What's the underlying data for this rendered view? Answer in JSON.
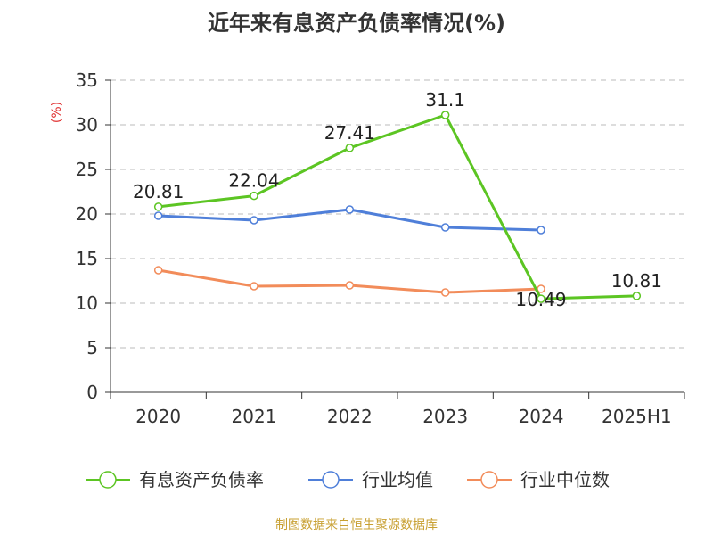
{
  "title": "近年来有息资产负债率情况(%)",
  "source_note": "制图数据来自恒生聚源数据库",
  "chart_data": {
    "type": "line",
    "title": "近年来有息资产负债率情况(%)",
    "xlabel": "",
    "ylabel": "(%)",
    "categories": [
      "2020",
      "2021",
      "2022",
      "2023",
      "2024",
      "2025H1"
    ],
    "ylim": [
      0,
      35
    ],
    "yticks": [
      0,
      5,
      10,
      15,
      20,
      25,
      30,
      35
    ],
    "grid": true,
    "legend_position": "bottom",
    "colors": {
      "ylabel": "#e03030",
      "axis": "#333333",
      "grid": "#bbbbbb"
    },
    "series": [
      {
        "name": "有息资产负债率",
        "color": "#5cc523",
        "show_labels": true,
        "values": [
          20.81,
          22.04,
          27.41,
          31.1,
          10.49,
          10.81
        ]
      },
      {
        "name": "行业均值",
        "color": "#4f7fd9",
        "show_labels": false,
        "values": [
          19.8,
          19.3,
          20.5,
          18.5,
          18.2,
          null
        ]
      },
      {
        "name": "行业中位数",
        "color": "#f28c5a",
        "show_labels": false,
        "values": [
          13.7,
          11.9,
          12.0,
          11.2,
          11.6,
          null
        ]
      }
    ]
  }
}
